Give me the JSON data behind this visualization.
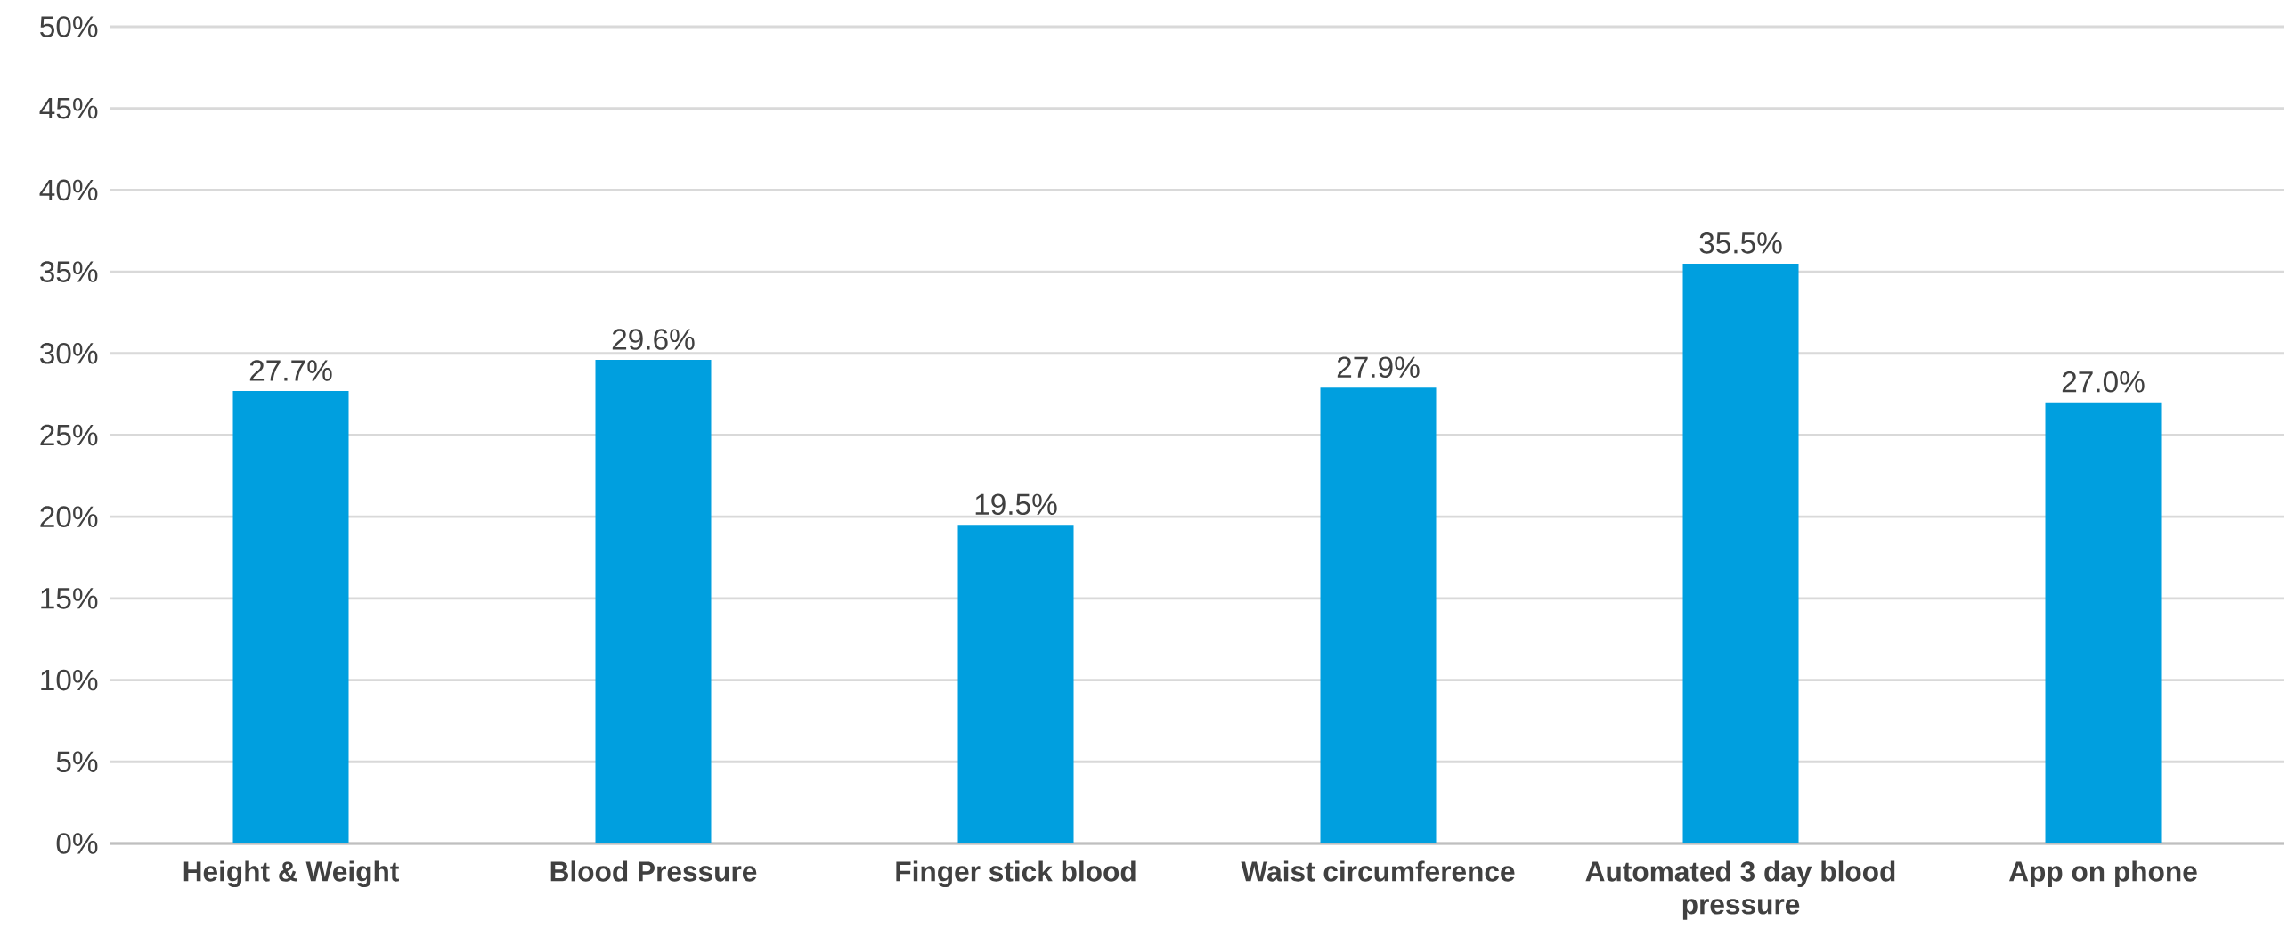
{
  "chart_data": {
    "type": "bar",
    "categories": [
      "Height & Weight",
      "Blood Pressure",
      "Finger stick blood",
      "Waist circumference",
      "Automated 3 day blood pressure",
      "App on phone"
    ],
    "values": [
      27.7,
      29.6,
      19.5,
      27.9,
      35.5,
      27.0
    ],
    "value_labels": [
      "27.7%",
      "29.6%",
      "19.5%",
      "27.9%",
      "35.5%",
      "27.0%"
    ],
    "color": "#009fdf",
    "ylim": [
      0,
      50
    ],
    "yticks": [
      {
        "value": 0,
        "label": "0%"
      },
      {
        "value": 5,
        "label": "5%"
      },
      {
        "value": 10,
        "label": "10%"
      },
      {
        "value": 15,
        "label": "15%"
      },
      {
        "value": 20,
        "label": "20%"
      },
      {
        "value": 25,
        "label": "25%"
      },
      {
        "value": 30,
        "label": "30%"
      },
      {
        "value": 35,
        "label": "35%"
      },
      {
        "value": 40,
        "label": "40%"
      },
      {
        "value": 45,
        "label": "45%"
      },
      {
        "value": 50,
        "label": "50%"
      }
    ],
    "grid": "y"
  }
}
